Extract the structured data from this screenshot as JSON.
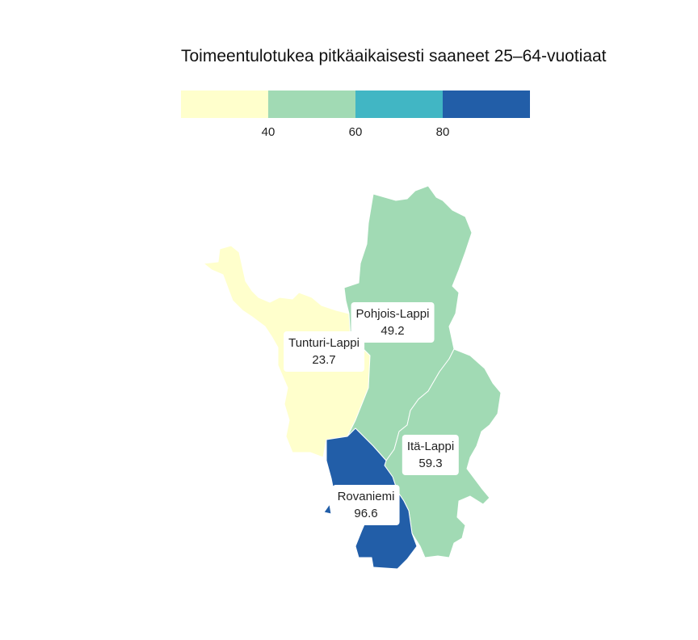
{
  "title": "Toimeentulotukea pitkäaikaisesti saaneet 25–64-vuotiaat",
  "legend": {
    "bins": [
      {
        "color": "#ffffcc"
      },
      {
        "color": "#a1dab4"
      },
      {
        "color": "#41b6c4"
      },
      {
        "color": "#225ea8"
      }
    ],
    "ticks": [
      "40",
      "60",
      "80"
    ]
  },
  "regions": [
    {
      "id": "tunturi-lappi",
      "name": "Tunturi-Lappi",
      "value": "23.7",
      "color": "#ffffcc"
    },
    {
      "id": "pohjois-lappi",
      "name": "Pohjois-Lappi",
      "value": "49.2",
      "color": "#a1dab4"
    },
    {
      "id": "ita-lappi",
      "name": "Itä-Lappi",
      "value": "59.3",
      "color": "#a1dab4"
    },
    {
      "id": "rovaniemi",
      "name": "Rovaniemi",
      "value": "96.6",
      "color": "#225ea8"
    }
  ]
}
